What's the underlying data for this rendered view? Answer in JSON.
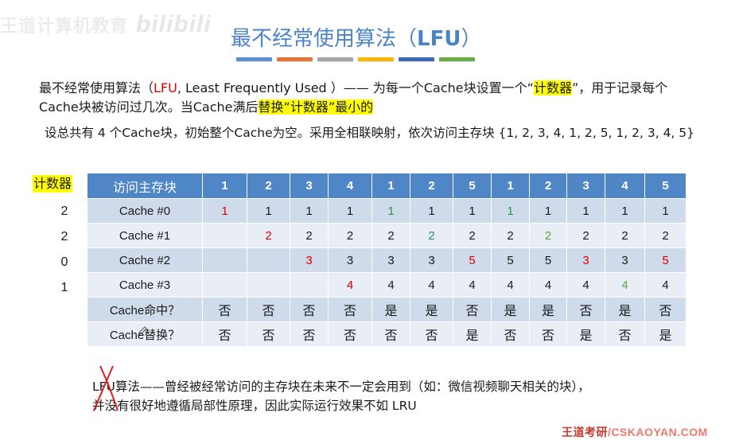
{
  "watermark_top": {
    "text": "王道计算机教育",
    "logo": "bilibili"
  },
  "title": {
    "cjk": "最不经常使用算法（",
    "latin": "LFU",
    "close": "）"
  },
  "color_bars": [
    "#5b8fd0",
    "#e5733a",
    "#a5a5a5",
    "#f5b800",
    "#3f6ab5",
    "#6aab45"
  ],
  "definition": {
    "part1": "最不经常使用算法（",
    "abbr": "LFU",
    "part2": ", Least Frequently Used ）—— 为每一个Cache块设置一个“",
    "hl1": "计数器",
    "part3": "”，用于记录每个Cache块被访问过几次。当Cache满后",
    "hl2": "替换“计数器”最小的"
  },
  "setup": "设总共有 4 个Cache块，初始整个Cache为空。采用全相联映射，依次访问主存块 {1, 2, 3, 4, 1, 2, 5, 1, 2, 3, 4, 5}",
  "counter": {
    "header": "计数器",
    "values": [
      "2",
      "2",
      "0",
      "1"
    ]
  },
  "table": {
    "header_label": "访问主存块",
    "access_sequence": [
      "1",
      "2",
      "3",
      "4",
      "1",
      "2",
      "5",
      "1",
      "2",
      "3",
      "4",
      "5"
    ],
    "rows": [
      {
        "label": "Cache #0",
        "cells": [
          {
            "v": "1",
            "c": "red"
          },
          {
            "v": "1",
            "c": ""
          },
          {
            "v": "1",
            "c": ""
          },
          {
            "v": "1",
            "c": ""
          },
          {
            "v": "1",
            "c": "green"
          },
          {
            "v": "1",
            "c": ""
          },
          {
            "v": "1",
            "c": ""
          },
          {
            "v": "1",
            "c": "green"
          },
          {
            "v": "1",
            "c": ""
          },
          {
            "v": "1",
            "c": ""
          },
          {
            "v": "1",
            "c": ""
          },
          {
            "v": "1",
            "c": ""
          }
        ]
      },
      {
        "label": "Cache #1",
        "cells": [
          {
            "v": "",
            "c": ""
          },
          {
            "v": "2",
            "c": "red"
          },
          {
            "v": "2",
            "c": ""
          },
          {
            "v": "2",
            "c": ""
          },
          {
            "v": "2",
            "c": ""
          },
          {
            "v": "2",
            "c": "green"
          },
          {
            "v": "2",
            "c": ""
          },
          {
            "v": "2",
            "c": ""
          },
          {
            "v": "2",
            "c": "lgreen"
          },
          {
            "v": "2",
            "c": ""
          },
          {
            "v": "2",
            "c": ""
          },
          {
            "v": "2",
            "c": ""
          }
        ]
      },
      {
        "label": "Cache #2",
        "cells": [
          {
            "v": "",
            "c": ""
          },
          {
            "v": "",
            "c": ""
          },
          {
            "v": "3",
            "c": "red"
          },
          {
            "v": "3",
            "c": ""
          },
          {
            "v": "3",
            "c": ""
          },
          {
            "v": "3",
            "c": ""
          },
          {
            "v": "5",
            "c": "red"
          },
          {
            "v": "5",
            "c": ""
          },
          {
            "v": "5",
            "c": ""
          },
          {
            "v": "3",
            "c": "red"
          },
          {
            "v": "3",
            "c": ""
          },
          {
            "v": "5",
            "c": "red"
          }
        ]
      },
      {
        "label": "Cache #3",
        "cells": [
          {
            "v": "",
            "c": ""
          },
          {
            "v": "",
            "c": ""
          },
          {
            "v": "",
            "c": ""
          },
          {
            "v": "4",
            "c": "red"
          },
          {
            "v": "4",
            "c": ""
          },
          {
            "v": "4",
            "c": ""
          },
          {
            "v": "4",
            "c": ""
          },
          {
            "v": "4",
            "c": ""
          },
          {
            "v": "4",
            "c": ""
          },
          {
            "v": "4",
            "c": ""
          },
          {
            "v": "4",
            "c": "lgreen"
          },
          {
            "v": "4",
            "c": ""
          }
        ]
      }
    ],
    "hit_row": {
      "label": "Cache命中？",
      "values": [
        "否",
        "否",
        "否",
        "否",
        "是",
        "是",
        "否",
        "是",
        "是",
        "否",
        "是",
        "否"
      ]
    },
    "replace_row": {
      "label": "Cache替换？",
      "values": [
        "否",
        "否",
        "否",
        "否",
        "否",
        "否",
        "是",
        "否",
        "否",
        "是",
        "否",
        "是"
      ]
    }
  },
  "conclusion": {
    "line1": "LFU算法——曾经被经常访问的主存块在未来不一定会用到（如：微信视频聊天相关的块），",
    "line2": "并没有很好地遵循局部性原理，因此实际运行效果不如 LRU"
  },
  "watermark_bottom": {
    "cjk": "王道考研",
    "latin": "/CSKAOYAN.COM"
  },
  "colors": {
    "title": "#4a84c4",
    "table_header": "#4f86c6",
    "row_dark": "#cfdbea",
    "row_light": "#e9eef6",
    "new_load": "#e00000",
    "hit": "#1f9a45",
    "highlight": "#ffff00"
  }
}
